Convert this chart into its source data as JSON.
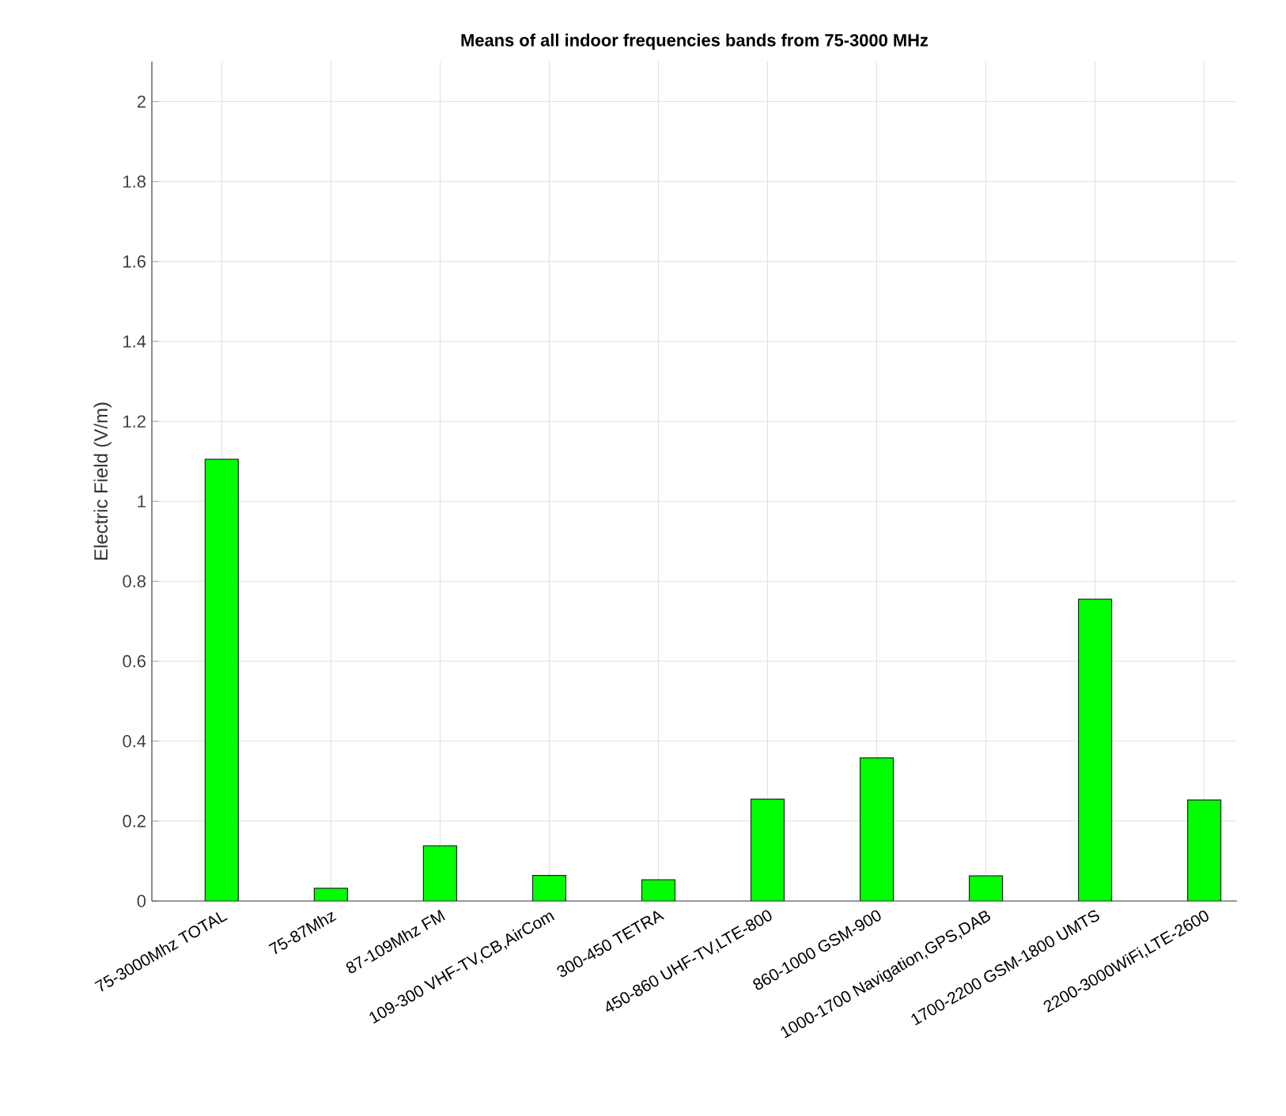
{
  "chart_data": {
    "type": "bar",
    "title": "Means of all indoor frequencies bands from 75-3000 MHz",
    "ylabel": "Electric Field (V/m)",
    "categories": [
      "75-3000Mhz TOTAL",
      "75-87Mhz",
      "87-109Mhz FM",
      "109-300 VHF-TV,CB,AirCom",
      "300-450 TETRA",
      "450-860 UHF-TV,LTE-800",
      "860-1000 GSM-900",
      "1000-1700 Navigation,GPS,DAB",
      "1700-2200 GSM-1800 UMTS",
      "2200-3000WiFi,LTE-2600"
    ],
    "values": [
      1.105,
      0.032,
      0.138,
      0.064,
      0.053,
      0.255,
      0.358,
      0.063,
      0.755,
      0.253
    ],
    "color": "#00ff00",
    "ylim": [
      0,
      2.1
    ],
    "yticks": [
      0,
      0.2,
      0.4,
      0.6,
      0.8,
      1,
      1.2,
      1.4,
      1.6,
      1.8,
      2
    ],
    "grid": true
  }
}
